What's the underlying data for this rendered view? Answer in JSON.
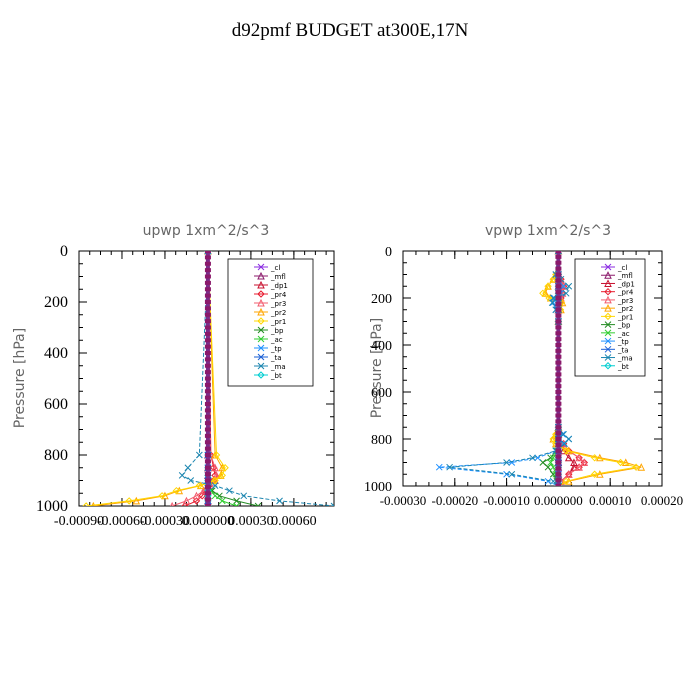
{
  "page": {
    "title": "d92pmf  BUDGET at300E,17N"
  },
  "legend_labels": [
    "_cl",
    "_mfl",
    "_dp1",
    "_pr4",
    "_pr3",
    "_pr2",
    "_pr1",
    "_bp",
    "_ac",
    "_tp",
    "_ta",
    "_ma",
    "_bt"
  ],
  "series_colors": {
    "_cl": "#8a2be2",
    "_mfl": "#8b1a6b",
    "_dp1": "#c8102e",
    "_pr4": "#e8192c",
    "_pr3": "#f25c6e",
    "_pr2": "#ffa500",
    "_pr1": "#ffd700",
    "_bp": "#228b22",
    "_ac": "#32cd32",
    "_tp": "#1e90ff",
    "_ta": "#1a5fd6",
    "_ma": "#1c86b0",
    "_bt": "#00ced1"
  },
  "chart_data": [
    {
      "type": "line",
      "title": "upwp   1xm^2/s^3",
      "ylabel": "Pressure [hPa]",
      "xlabel": "",
      "ylim": [
        1000,
        0
      ],
      "xlim": [
        -0.0009,
        0.00088
      ],
      "y_ticks": [
        0,
        200,
        400,
        600,
        800,
        1000
      ],
      "x_ticks": [
        -0.0009,
        -0.0006,
        -0.0003,
        0,
        0.0003,
        0.0006
      ],
      "x_tick_labels": [
        "-0.00090",
        "-0.00060",
        "-0.00030",
        "0.000000",
        "0.00030",
        "0.00060"
      ],
      "y": [
        0,
        800,
        850,
        880,
        900,
        920,
        940,
        960,
        980,
        1000
      ],
      "series": [
        {
          "name": "_cl",
          "values": [
            0,
            0,
            0,
            0,
            0,
            0,
            0,
            0,
            0,
            0
          ]
        },
        {
          "name": "_mfl",
          "values": [
            0,
            0,
            0,
            0,
            0,
            0,
            0,
            0,
            0,
            0
          ]
        },
        {
          "name": "_dp1",
          "values": [
            0,
            0,
            0,
            0,
            0,
            0,
            0,
            0,
            0,
            0
          ]
        },
        {
          "name": "_pr4",
          "values": [
            0,
            2e-05,
            4e-05,
            5e-05,
            4e-05,
            1e-05,
            -2e-05,
            -4e-05,
            -8e-05,
            -0.00016
          ]
        },
        {
          "name": "_pr3",
          "values": [
            0,
            2e-05,
            5e-05,
            6e-05,
            5e-05,
            2e-05,
            -3e-05,
            -8e-05,
            -0.00015,
            -0.00025
          ]
        },
        {
          "name": "_pr2",
          "values": [
            0,
            5e-05,
            0.0001,
            9e-05,
            4e-05,
            -5e-05,
            -0.0002,
            -0.0003,
            -0.0005,
            -0.0008
          ]
        },
        {
          "name": "_pr1",
          "values": [
            0,
            6e-05,
            0.00012,
            0.0001,
            5e-05,
            -6e-05,
            -0.00022,
            -0.00032,
            -0.00055,
            -0.00085
          ]
        },
        {
          "name": "_bp",
          "values": [
            0,
            0,
            0,
            0,
            0,
            0,
            3e-05,
            8e-05,
            0.0002,
            0.00035
          ]
        },
        {
          "name": "_ac",
          "values": [
            0,
            0,
            0,
            0,
            0,
            0,
            2e-05,
            5e-05,
            0.0001,
            0.0002
          ]
        },
        {
          "name": "_tp",
          "values": [
            0,
            0,
            0,
            0,
            0,
            0,
            0,
            0,
            0,
            0
          ]
        },
        {
          "name": "_ta",
          "values": [
            0,
            0,
            0,
            0,
            0,
            0,
            0,
            0,
            0,
            0
          ]
        },
        {
          "name": "_ma",
          "values": [
            0,
            -6e-05,
            -0.00014,
            -0.00018,
            -0.00012,
            5e-05,
            0.00015,
            0.00025,
            0.0005,
            0.00088
          ]
        },
        {
          "name": "_bt",
          "values": [
            0,
            0,
            0,
            0,
            0,
            0,
            0,
            0,
            0,
            0
          ]
        }
      ]
    },
    {
      "type": "line",
      "title": "vpwp   1xm^2/s^3",
      "ylabel": "Pressure [hPa]",
      "xlabel": "",
      "ylim": [
        1000,
        0
      ],
      "xlim": [
        -0.0003,
        0.0002
      ],
      "y_ticks": [
        0,
        200,
        400,
        600,
        800,
        1000
      ],
      "x_ticks": [
        -0.0003,
        -0.0002,
        -0.0001,
        0,
        0.0001,
        0.0002
      ],
      "x_tick_labels": [
        "-0.00030",
        "-0.00020",
        "-0.00010",
        "0.000000",
        "0.00010",
        "0.00020"
      ],
      "y": [
        0,
        100,
        120,
        150,
        180,
        200,
        220,
        250,
        300,
        750,
        780,
        800,
        820,
        850,
        880,
        900,
        920,
        950,
        980,
        1000
      ],
      "series": [
        {
          "name": "_cl",
          "values": [
            0,
            0,
            0,
            0,
            0,
            0,
            0,
            0,
            0,
            0,
            0,
            0,
            0,
            0,
            0,
            0,
            0,
            0,
            0,
            0
          ]
        },
        {
          "name": "_mfl",
          "values": [
            0,
            0,
            0,
            0,
            0,
            0,
            0,
            0,
            0,
            0,
            0,
            0,
            0,
            0,
            0,
            0,
            0,
            0,
            0,
            0
          ]
        },
        {
          "name": "_dp1",
          "values": [
            0,
            0,
            3e-06,
            5e-06,
            3e-06,
            2e-06,
            1e-06,
            0,
            0,
            0,
            0,
            0,
            5e-06,
            1e-05,
            2e-05,
            3e-05,
            3e-05,
            2e-05,
            5e-06,
            0
          ]
        },
        {
          "name": "_pr4",
          "values": [
            0,
            0,
            5e-06,
            1e-05,
            8e-06,
            5e-06,
            3e-06,
            0,
            0,
            0,
            0,
            0,
            1e-05,
            2e-05,
            4e-05,
            5e-05,
            4e-05,
            2e-05,
            5e-06,
            0
          ]
        },
        {
          "name": "_pr3",
          "values": [
            0,
            0,
            5e-06,
            1e-05,
            8e-06,
            5e-06,
            2e-06,
            0,
            0,
            0,
            0,
            0,
            1e-05,
            2e-05,
            4e-05,
            5e-05,
            4e-05,
            2e-05,
            5e-06,
            0
          ]
        },
        {
          "name": "_pr2",
          "values": [
            0,
            -5e-06,
            -1e-05,
            -2e-05,
            -2.5e-05,
            -1.5e-05,
            8e-06,
            5e-06,
            0,
            0,
            -5e-06,
            -1e-05,
            -5e-06,
            2e-05,
            8e-05,
            0.00013,
            0.00016,
            8e-05,
            2e-05,
            0
          ]
        },
        {
          "name": "_pr1",
          "values": [
            0,
            -5e-06,
            -1e-05,
            -2e-05,
            -3e-05,
            -1.8e-05,
            6e-06,
            4e-06,
            0,
            0,
            -5e-06,
            -1e-05,
            -5e-06,
            1.5e-05,
            7e-05,
            0.00012,
            0.00015,
            7e-05,
            1.5e-05,
            0
          ]
        },
        {
          "name": "_bp",
          "values": [
            0,
            0,
            0,
            0,
            0,
            0,
            0,
            0,
            0,
            0,
            0,
            0,
            0,
            -5e-06,
            -1.5e-05,
            -3e-05,
            -2e-05,
            -1e-05,
            -3e-06,
            0
          ]
        },
        {
          "name": "_ac",
          "values": [
            0,
            0,
            0,
            0,
            0,
            0,
            0,
            0,
            0,
            0,
            0,
            0,
            0,
            -3e-06,
            -1e-05,
            -1.5e-05,
            -1e-05,
            -5e-06,
            -1e-06,
            0
          ]
        },
        {
          "name": "_tp",
          "values": [
            0,
            -5e-06,
            0,
            1e-05,
            5e-06,
            -8e-06,
            -1e-05,
            -5e-06,
            0,
            0,
            8e-06,
            2e-05,
            1e-05,
            -5e-06,
            -4e-05,
            -9e-05,
            -0.00023,
            -0.0001,
            -2e-05,
            0
          ]
        },
        {
          "name": "_ta",
          "values": [
            0,
            0,
            0,
            0,
            0,
            0,
            0,
            0,
            0,
            0,
            0,
            0,
            0,
            0,
            0,
            0,
            0,
            0,
            0,
            0
          ]
        },
        {
          "name": "_ma",
          "values": [
            0,
            -5e-06,
            5e-06,
            2e-05,
            1.5e-05,
            -1e-05,
            -1.2e-05,
            -5e-06,
            0,
            0,
            1e-05,
            2e-05,
            1.2e-05,
            -5e-06,
            -5e-05,
            -0.0001,
            -0.00021,
            -9e-05,
            -1e-05,
            0
          ]
        },
        {
          "name": "_bt",
          "values": [
            0,
            0,
            0,
            0,
            0,
            0,
            0,
            0,
            0,
            0,
            0,
            0,
            0,
            0,
            0,
            0,
            0,
            0,
            0,
            0
          ]
        }
      ]
    }
  ]
}
